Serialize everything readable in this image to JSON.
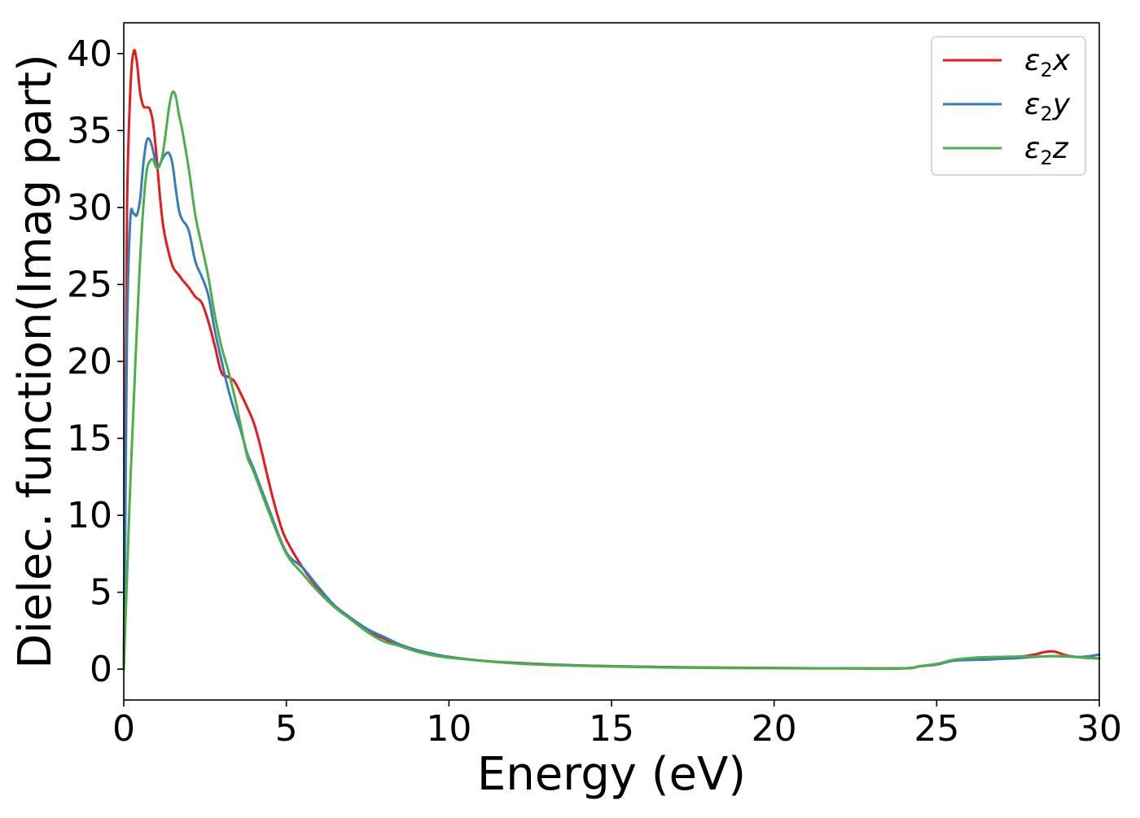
{
  "chart_data": {
    "type": "line",
    "title": "",
    "xlabel": "Energy (eV)",
    "ylabel": "Dielec. function(Imag part)",
    "xlim": [
      0,
      30
    ],
    "ylim": [
      -2,
      42
    ],
    "xticks": [
      0,
      5,
      10,
      15,
      20,
      25,
      30
    ],
    "yticks": [
      0,
      5,
      10,
      15,
      20,
      25,
      30,
      35,
      40
    ],
    "grid": false,
    "legend_position": "top-right",
    "series": [
      {
        "name": "ε₂x",
        "legend_main": "ε",
        "legend_sub": "2",
        "legend_axis": "x",
        "color": "#e41a1c",
        "x": [
          0,
          0.05,
          0.1,
          0.2,
          0.3,
          0.4,
          0.5,
          0.6,
          0.7,
          0.8,
          0.9,
          1.0,
          1.1,
          1.2,
          1.3,
          1.5,
          1.7,
          1.8,
          2.0,
          2.2,
          2.4,
          2.6,
          2.8,
          3.0,
          3.2,
          3.4,
          3.6,
          3.8,
          4.0,
          4.2,
          4.4,
          4.6,
          4.8,
          5.0,
          5.5,
          6.0,
          6.5,
          7.0,
          7.5,
          8.0,
          8.5,
          9.0,
          9.5,
          10,
          11,
          12,
          13,
          14,
          15,
          17,
          20,
          22,
          24,
          24.5,
          25,
          25.5,
          26,
          26.5,
          27,
          27.5,
          28,
          28.3,
          28.6,
          29,
          29.5,
          30
        ],
        "y": [
          0,
          15,
          30,
          37.5,
          40.1,
          39.5,
          37.5,
          36.6,
          36.5,
          36.4,
          35.5,
          33.5,
          31,
          29,
          27.8,
          26.2,
          25.6,
          25.3,
          24.8,
          24.2,
          23.8,
          22.6,
          21,
          19.3,
          19,
          18.7,
          17.9,
          17,
          16,
          14.5,
          12.7,
          11,
          9.5,
          8.4,
          6.6,
          5.2,
          4.1,
          3.3,
          2.5,
          2.0,
          1.5,
          1.2,
          0.95,
          0.8,
          0.55,
          0.42,
          0.32,
          0.25,
          0.2,
          0.13,
          0.08,
          0.06,
          0.06,
          0.2,
          0.32,
          0.55,
          0.65,
          0.7,
          0.75,
          0.8,
          0.95,
          1.1,
          1.15,
          0.9,
          0.75,
          0.7
        ]
      },
      {
        "name": "ε₂y",
        "legend_main": "ε",
        "legend_sub": "2",
        "legend_axis": "y",
        "color": "#377eb8",
        "x": [
          0,
          0.05,
          0.1,
          0.2,
          0.3,
          0.4,
          0.5,
          0.6,
          0.7,
          0.8,
          0.9,
          1.0,
          1.1,
          1.2,
          1.3,
          1.4,
          1.5,
          1.6,
          1.7,
          1.8,
          2.0,
          2.2,
          2.4,
          2.6,
          2.8,
          3.0,
          3.2,
          3.4,
          3.6,
          3.8,
          4.0,
          4.5,
          5.0,
          5.5,
          6.0,
          6.5,
          7.0,
          7.5,
          8.0,
          8.5,
          9.0,
          9.5,
          10,
          11,
          12,
          13,
          14,
          15,
          17,
          20,
          22,
          24,
          24.5,
          25,
          25.5,
          26,
          26.5,
          27,
          27.5,
          28,
          28.5,
          29,
          29.5,
          30
        ],
        "y": [
          0,
          10,
          22,
          29.2,
          29.6,
          29.5,
          30.5,
          32.8,
          34.3,
          34.4,
          33.7,
          32.8,
          32.8,
          33.2,
          33.5,
          33.5,
          32.8,
          31.2,
          29.8,
          29.2,
          28.5,
          26.5,
          25.5,
          24.3,
          22,
          20.1,
          18.3,
          16.8,
          15.5,
          14,
          13,
          10.2,
          7.6,
          6.6,
          5.3,
          4.1,
          3.3,
          2.6,
          2.1,
          1.6,
          1.25,
          1.0,
          0.8,
          0.55,
          0.4,
          0.3,
          0.24,
          0.19,
          0.12,
          0.07,
          0.06,
          0.06,
          0.2,
          0.3,
          0.55,
          0.6,
          0.62,
          0.68,
          0.72,
          0.8,
          0.85,
          0.82,
          0.8,
          0.95
        ]
      },
      {
        "name": "ε₂z",
        "legend_main": "ε",
        "legend_sub": "2",
        "legend_axis": "z",
        "color": "#4daf4a",
        "x": [
          0,
          0.1,
          0.2,
          0.3,
          0.4,
          0.5,
          0.6,
          0.7,
          0.8,
          0.9,
          1.0,
          1.1,
          1.2,
          1.3,
          1.4,
          1.5,
          1.6,
          1.7,
          1.8,
          2.0,
          2.2,
          2.4,
          2.6,
          2.8,
          3.0,
          3.2,
          3.4,
          3.6,
          3.8,
          4.0,
          4.5,
          5.0,
          5.5,
          6.0,
          6.5,
          7.0,
          7.5,
          8.0,
          8.5,
          9.0,
          9.5,
          10,
          11,
          12,
          13,
          14,
          15,
          17,
          20,
          22,
          24,
          24.5,
          25,
          25.5,
          26,
          26.5,
          27,
          27.5,
          28,
          28.5,
          29,
          29.5,
          30
        ],
        "y": [
          0,
          6,
          12,
          17,
          22,
          26.5,
          30,
          32.3,
          33,
          33.1,
          32.6,
          32.7,
          33.5,
          35,
          36.6,
          37.5,
          37.2,
          36,
          35,
          32.5,
          29.5,
          27.5,
          25.5,
          23,
          21,
          19.5,
          17.8,
          15.8,
          13.8,
          12.8,
          10,
          7.5,
          6.2,
          5.0,
          4.0,
          3.2,
          2.4,
          1.8,
          1.5,
          1.15,
          0.9,
          0.75,
          0.55,
          0.38,
          0.28,
          0.22,
          0.17,
          0.1,
          0.06,
          0.05,
          0.05,
          0.2,
          0.35,
          0.6,
          0.72,
          0.78,
          0.8,
          0.82,
          0.82,
          0.84,
          0.85,
          0.75,
          0.7
        ]
      }
    ]
  }
}
